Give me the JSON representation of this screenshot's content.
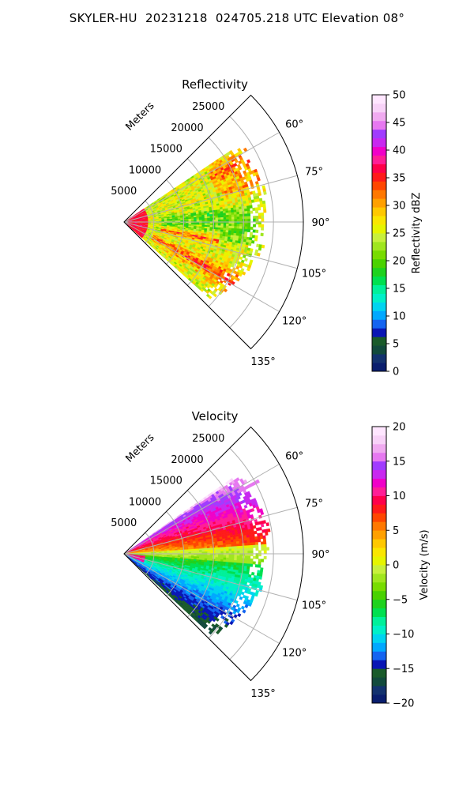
{
  "suptitle": "SKYLER-HU  20231218  024705.218 UTC Elevation 08°",
  "colors": {
    "gridline": "#b0b0b0",
    "axis": "#000000"
  },
  "chart_data": [
    {
      "type": "heatmap",
      "projection": "polar-sector",
      "title": "Reflectivity",
      "radial_label": "Meters",
      "radial_ticks": [
        5000,
        10000,
        15000,
        20000,
        25000
      ],
      "radial_tick_labels": [
        "5000",
        "10000",
        "15000",
        "20000",
        "25000"
      ],
      "rlim": [
        0,
        30000
      ],
      "theta_ticks": [
        60,
        75,
        90,
        105,
        120,
        135
      ],
      "theta_tick_labels": [
        "60°",
        "75°",
        "90°",
        "105°",
        "120°",
        "135°"
      ],
      "theta_range_deg": [
        45,
        135
      ],
      "grid": true,
      "colorbar": {
        "label": "Reflectivity dBZ",
        "range": [
          0,
          50
        ],
        "ticks": [
          0,
          5,
          10,
          15,
          20,
          25,
          30,
          35,
          40,
          45,
          50
        ],
        "tick_labels": [
          "0",
          "5",
          "10",
          "15",
          "20",
          "25",
          "30",
          "35",
          "40",
          "45",
          "50"
        ],
        "colors": [
          "#0a1e6e",
          "#13326e",
          "#124a3c",
          "#1a5b2a",
          "#0a16b4",
          "#1464f0",
          "#00a8ff",
          "#00d4f0",
          "#00f0c8",
          "#00f09a",
          "#00e050",
          "#1ed21e",
          "#4ad200",
          "#78dc00",
          "#a0e61e",
          "#c8f03c",
          "#e6f500",
          "#fae600",
          "#ffc800",
          "#ffa000",
          "#ff7800",
          "#ff4600",
          "#ff1a1a",
          "#ff004a",
          "#ff1e96",
          "#f000c8",
          "#c828f0",
          "#a03cff",
          "#e678f0",
          "#f0aaf0",
          "#f8d2f8",
          "#ffe6ff"
        ]
      },
      "field_summary": "mostly 20–30 dBZ (green/yellow) with embedded bands of 30–38 dBZ (orange/red); highest near radar and along streaks toward 100° and 120°"
    },
    {
      "type": "heatmap",
      "projection": "polar-sector",
      "title": "Velocity",
      "radial_label": "Meters",
      "radial_ticks": [
        5000,
        10000,
        15000,
        20000,
        25000
      ],
      "radial_tick_labels": [
        "5000",
        "10000",
        "15000",
        "20000",
        "25000"
      ],
      "rlim": [
        0,
        30000
      ],
      "theta_ticks": [
        60,
        75,
        90,
        105,
        120,
        135
      ],
      "theta_tick_labels": [
        "60°",
        "75°",
        "90°",
        "105°",
        "120°",
        "135°"
      ],
      "theta_range_deg": [
        45,
        135
      ],
      "grid": true,
      "colorbar": {
        "label": "Velocity (m/s)",
        "range": [
          -20,
          20
        ],
        "ticks": [
          -20,
          -15,
          -10,
          -5,
          0,
          5,
          10,
          15,
          20
        ],
        "tick_labels": [
          "−20",
          "−15",
          "−10",
          "−5",
          "0",
          "5",
          "10",
          "15",
          "20"
        ],
        "colors": [
          "#0a1e6e",
          "#13326e",
          "#124a3c",
          "#1a5b2a",
          "#0a16b4",
          "#1464f0",
          "#00a8ff",
          "#00d4f0",
          "#00f0c8",
          "#00f09a",
          "#00e050",
          "#1ed21e",
          "#4ad200",
          "#78dc00",
          "#a0e61e",
          "#c8f03c",
          "#e6f500",
          "#fae600",
          "#ffc800",
          "#ffa000",
          "#ff7800",
          "#ff4600",
          "#ff1a1a",
          "#ff004a",
          "#ff1e96",
          "#f000c8",
          "#c828f0",
          "#a03cff",
          "#e678f0",
          "#f0aaf0",
          "#f8d2f8",
          "#ffe6ff"
        ]
      },
      "field_summary": "north half (45°–85°) outbound 5–15 m/s (orange/red/magenta); near 90° about 0 m/s (yellow/light green); south half inbound −5 to −13 m/s (green/cyan)"
    }
  ]
}
